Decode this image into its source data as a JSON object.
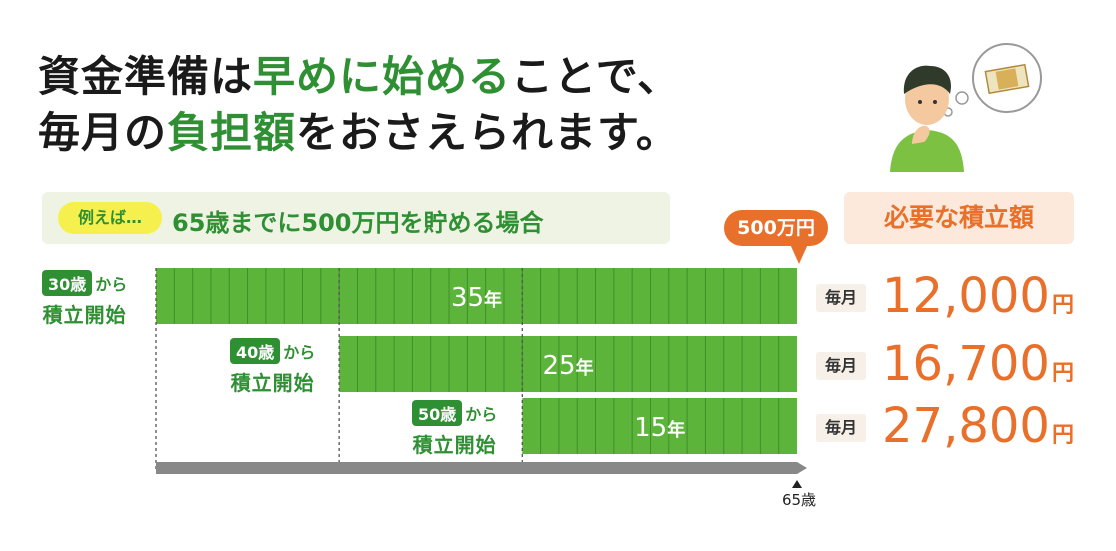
{
  "headline": {
    "line1": [
      {
        "text": "資金準備は",
        "highlight": false
      },
      {
        "text": "早めに始める",
        "highlight": true
      },
      {
        "text": "ことで、",
        "highlight": false
      }
    ],
    "line2": [
      {
        "text": "毎月の",
        "highlight": false
      },
      {
        "text": "負担額",
        "highlight": true
      },
      {
        "text": "をおさえられます。",
        "highlight": false
      }
    ]
  },
  "example": {
    "tag": "例えば…",
    "text": "65歳までに500万円を貯める場合"
  },
  "required_header": "必要な積立額",
  "goal_label": "500万円",
  "colors": {
    "green": "#2f8f33",
    "bar_green": "#5cb53a",
    "orange": "#e8702a",
    "gray": "#888888"
  },
  "chart_data": {
    "type": "bar",
    "orientation": "horizontal",
    "end_label": "65歳",
    "end_age": 65,
    "series": [
      {
        "start_age": "30歳",
        "start_text": "から",
        "start_sub": "積立開始",
        "start": 30,
        "years": 35,
        "year_label": "35",
        "year_unit": "年",
        "monthly_label": "毎月",
        "monthly_amount": "12,000",
        "currency": "円"
      },
      {
        "start_age": "40歳",
        "start_text": "から",
        "start_sub": "積立開始",
        "start": 40,
        "years": 25,
        "year_label": "25",
        "year_unit": "年",
        "monthly_label": "毎月",
        "monthly_amount": "16,700",
        "currency": "円"
      },
      {
        "start_age": "50歳",
        "start_text": "から",
        "start_sub": "積立開始",
        "start": 50,
        "years": 15,
        "year_label": "15",
        "year_unit": "年",
        "monthly_label": "毎月",
        "monthly_amount": "27,800",
        "currency": "円"
      }
    ]
  }
}
